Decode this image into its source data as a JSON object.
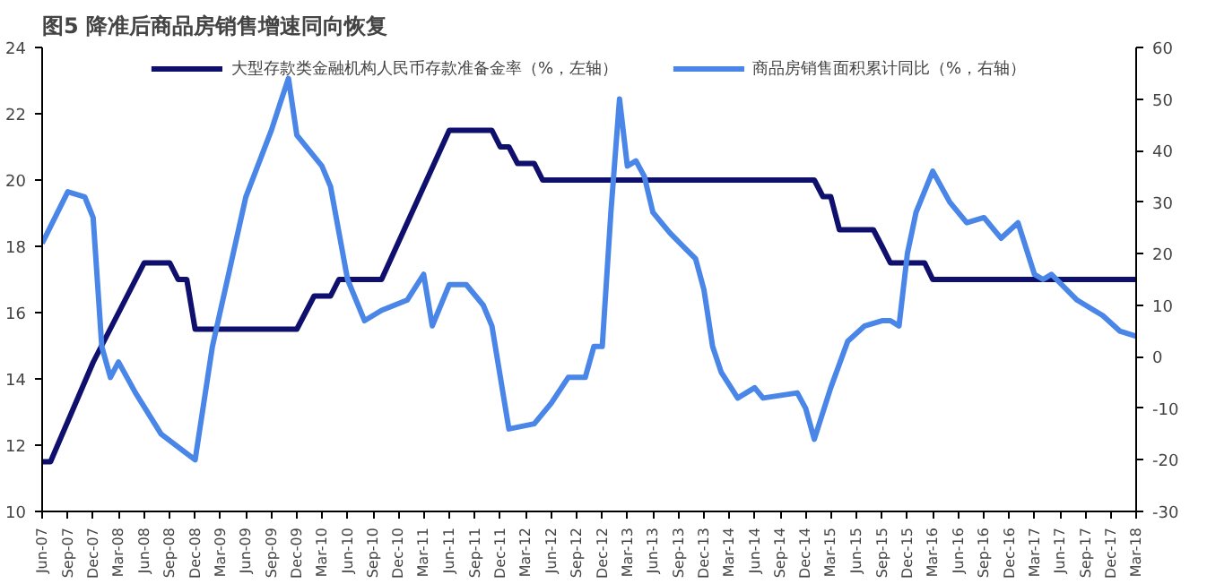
{
  "chart_data": {
    "type": "line",
    "title": "图5  降准后商品房销售增速同向恢复",
    "xlim": [
      "2007-06",
      "2018-03"
    ],
    "xticks": [
      {
        "value": "2007-06",
        "label": "Jun-07"
      },
      {
        "value": "2007-09",
        "label": "Sep-07"
      },
      {
        "value": "2007-12",
        "label": "Dec-07"
      },
      {
        "value": "2008-03",
        "label": "Mar-08"
      },
      {
        "value": "2008-06",
        "label": "Jun-08"
      },
      {
        "value": "2008-09",
        "label": "Sep-08"
      },
      {
        "value": "2008-12",
        "label": "Dec-08"
      },
      {
        "value": "2009-03",
        "label": "Mar-09"
      },
      {
        "value": "2009-06",
        "label": "Jun-09"
      },
      {
        "value": "2009-09",
        "label": "Sep-09"
      },
      {
        "value": "2009-12",
        "label": "Dec-09"
      },
      {
        "value": "2010-03",
        "label": "Mar-10"
      },
      {
        "value": "2010-06",
        "label": "Jun-10"
      },
      {
        "value": "2010-09",
        "label": "Sep-10"
      },
      {
        "value": "2010-12",
        "label": "Dec-10"
      },
      {
        "value": "2011-03",
        "label": "Mar-11"
      },
      {
        "value": "2011-06",
        "label": "Jun-11"
      },
      {
        "value": "2011-09",
        "label": "Sep-11"
      },
      {
        "value": "2011-12",
        "label": "Dec-11"
      },
      {
        "value": "2012-03",
        "label": "Mar-12"
      },
      {
        "value": "2012-06",
        "label": "Jun-12"
      },
      {
        "value": "2012-09",
        "label": "Sep-12"
      },
      {
        "value": "2012-12",
        "label": "Dec-12"
      },
      {
        "value": "2013-03",
        "label": "Mar-13"
      },
      {
        "value": "2013-06",
        "label": "Jun-13"
      },
      {
        "value": "2013-09",
        "label": "Sep-13"
      },
      {
        "value": "2013-12",
        "label": "Dec-13"
      },
      {
        "value": "2014-03",
        "label": "Mar-14"
      },
      {
        "value": "2014-06",
        "label": "Jun-14"
      },
      {
        "value": "2014-09",
        "label": "Sep-14"
      },
      {
        "value": "2014-12",
        "label": "Dec-14"
      },
      {
        "value": "2015-03",
        "label": "Mar-15"
      },
      {
        "value": "2015-06",
        "label": "Jun-15"
      },
      {
        "value": "2015-09",
        "label": "Sep-15"
      },
      {
        "value": "2015-12",
        "label": "Dec-15"
      },
      {
        "value": "2016-03",
        "label": "Mar-16"
      },
      {
        "value": "2016-06",
        "label": "Jun-16"
      },
      {
        "value": "2016-09",
        "label": "Sep-16"
      },
      {
        "value": "2016-12",
        "label": "Dec-16"
      },
      {
        "value": "2017-03",
        "label": "Mar-17"
      },
      {
        "value": "2017-06",
        "label": "Jun-17"
      },
      {
        "value": "2017-09",
        "label": "Sep-17"
      },
      {
        "value": "2017-12",
        "label": "Dec-17"
      },
      {
        "value": "2018-03",
        "label": "Mar-18"
      }
    ],
    "ylim": [
      10,
      24
    ],
    "yticks": [
      10,
      12,
      14,
      16,
      18,
      20,
      22,
      24
    ],
    "y2lim": [
      -30,
      60
    ],
    "y2ticks": [
      -30,
      -20,
      -10,
      0,
      10,
      20,
      30,
      40,
      50,
      60
    ],
    "grid": false,
    "legend": "top",
    "marker": "none",
    "line_style": "solid",
    "series": [
      {
        "name": "大型存款类金融机构人民币存款准备金率（%，左轴）",
        "color": "#0f0f6e",
        "x": [
          "2007-06",
          "2007-07",
          "2007-12",
          "2008-06",
          "2008-09",
          "2008-10",
          "2008-11",
          "2008-12",
          "2009-12",
          "2010-02",
          "2010-04",
          "2010-05",
          "2010-10",
          "2011-06",
          "2011-11",
          "2011-12",
          "2012-01",
          "2012-02",
          "2012-04",
          "2012-05",
          "2015-01",
          "2015-02",
          "2015-03",
          "2015-04",
          "2015-08",
          "2015-09",
          "2015-10",
          "2016-02",
          "2016-03",
          "2018-03"
        ],
        "values": [
          11.5,
          11.5,
          14.5,
          17.5,
          17.5,
          17,
          17,
          15.5,
          15.5,
          16.5,
          16.5,
          17,
          17,
          21.5,
          21.5,
          21,
          21,
          20.5,
          20.5,
          20,
          20,
          19.5,
          19.5,
          18.5,
          18.5,
          18,
          17.5,
          17.5,
          17,
          17
        ]
      },
      {
        "name": "商品房销售面积累计同比（%，右轴）",
        "color": "#4a86e8",
        "axis": "y2",
        "x": [
          "2007-06",
          "2007-09",
          "2007-11",
          "2007-12",
          "2008-01",
          "2008-02",
          "2008-03",
          "2008-05",
          "2008-08",
          "2008-12",
          "2009-02",
          "2009-06",
          "2009-09",
          "2009-10",
          "2009-11",
          "2009-12",
          "2010-03",
          "2010-04",
          "2010-06",
          "2010-08",
          "2010-10",
          "2011-01",
          "2011-03",
          "2011-04",
          "2011-06",
          "2011-08",
          "2011-10",
          "2011-11",
          "2012-01",
          "2012-04",
          "2012-06",
          "2012-08",
          "2012-10",
          "2012-11",
          "2012-12",
          "2013-01",
          "2013-02",
          "2013-03",
          "2013-04",
          "2013-05",
          "2013-06",
          "2013-08",
          "2013-11",
          "2013-12",
          "2014-01",
          "2014-02",
          "2014-04",
          "2014-06",
          "2014-07",
          "2014-11",
          "2014-12",
          "2015-01",
          "2015-03",
          "2015-05",
          "2015-07",
          "2015-09",
          "2015-10",
          "2015-11",
          "2015-12",
          "2016-01",
          "2016-03",
          "2016-05",
          "2016-07",
          "2016-09",
          "2016-11",
          "2017-01",
          "2017-03",
          "2017-04",
          "2017-05",
          "2017-08",
          "2017-10",
          "2017-11",
          "2018-01",
          "2018-03"
        ],
        "values": [
          22,
          32,
          31,
          27,
          2,
          -4,
          -1,
          -7,
          -15,
          -20,
          2,
          31,
          44,
          49,
          54,
          43,
          37,
          33,
          15,
          7,
          9,
          11,
          16,
          6,
          14,
          14,
          10,
          6,
          -14,
          -13,
          -9,
          -4,
          -4,
          2,
          2,
          28,
          50,
          37,
          38,
          35,
          28,
          24,
          19,
          13,
          2,
          -3,
          -8,
          -6,
          -8,
          -7,
          -10,
          -16,
          -6,
          3,
          6,
          7,
          7,
          6,
          20,
          28,
          36,
          30,
          26,
          27,
          23,
          26,
          16,
          15,
          16,
          11,
          9,
          8,
          5,
          4
        ]
      }
    ]
  }
}
